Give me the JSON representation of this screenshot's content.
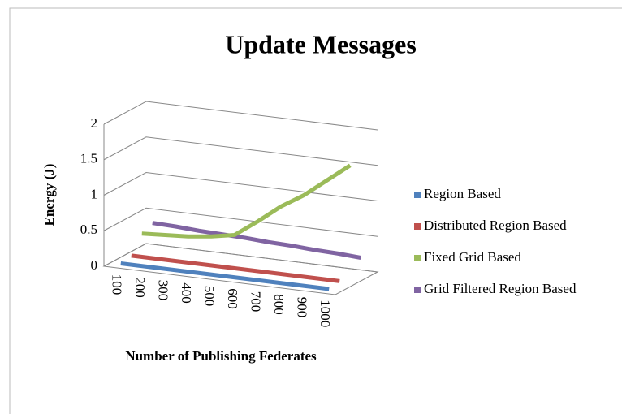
{
  "chart_data": {
    "type": "line3d",
    "title": "Update Messages",
    "xlabel": "Number of Publishing Federates",
    "ylabel": "Energy (J)",
    "categories": [
      "100",
      "200",
      "300",
      "400",
      "500",
      "600",
      "700",
      "800",
      "900",
      "1000"
    ],
    "ylim": [
      0,
      2
    ],
    "yticks": [
      0,
      0.5,
      1,
      1.5,
      2
    ],
    "grid": true,
    "legend": "right",
    "series": [
      {
        "name": "Region Based",
        "color": "#4f81bd",
        "values": [
          0.02,
          0.02,
          0.02,
          0.02,
          0.02,
          0.02,
          0.02,
          0.02,
          0.02,
          0.02
        ]
      },
      {
        "name": "Distributed Region Based",
        "color": "#c0504d",
        "values": [
          0.05,
          0.05,
          0.05,
          0.05,
          0.05,
          0.05,
          0.05,
          0.05,
          0.05,
          0.05
        ]
      },
      {
        "name": "Fixed Grid Based",
        "color": "#9bbb59",
        "values": [
          0.28,
          0.3,
          0.32,
          0.36,
          0.42,
          0.65,
          0.9,
          1.1,
          1.35,
          1.6
        ]
      },
      {
        "name": "Grid Filtered Region Based",
        "color": "#8064a2",
        "values": [
          0.35,
          0.34,
          0.32,
          0.31,
          0.3,
          0.28,
          0.27,
          0.25,
          0.24,
          0.22
        ]
      }
    ]
  }
}
